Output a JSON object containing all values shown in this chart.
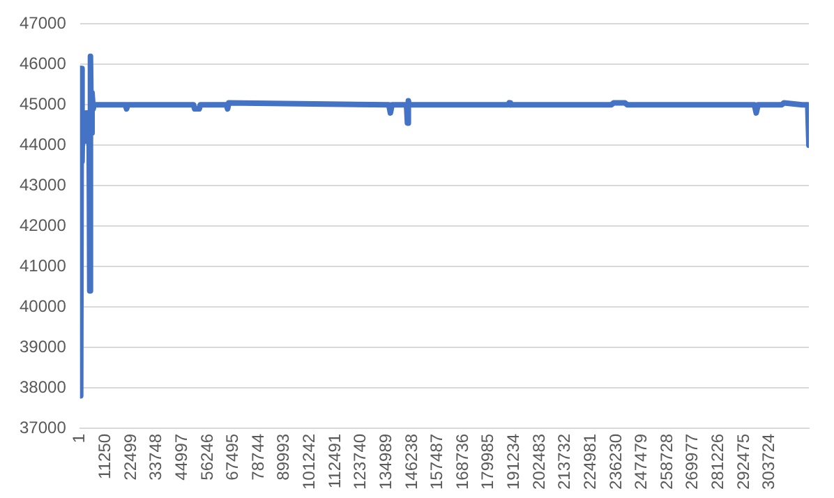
{
  "chart_data": {
    "type": "line",
    "x": [
      1,
      300,
      600,
      900,
      1200,
      1600,
      2000,
      2500,
      3000,
      3500,
      4000,
      4300,
      4600,
      5000,
      5300,
      5800,
      6200,
      20000,
      20500,
      21000,
      50000,
      50500,
      52500,
      53000,
      64500,
      65000,
      65500,
      136000,
      136700,
      137400,
      143800,
      144200,
      144600,
      145000,
      188500,
      189000,
      189500,
      234000,
      235000,
      240000,
      241000,
      297000,
      297800,
      298600,
      309000,
      310000,
      318000,
      320500,
      321000
    ],
    "values": [
      45900,
      37800,
      45900,
      43600,
      44800,
      44100,
      44700,
      44100,
      44800,
      44200,
      44700,
      40400,
      46200,
      44300,
      45300,
      44900,
      45000,
      45000,
      44900,
      45000,
      45000,
      44900,
      44900,
      45000,
      45000,
      44900,
      45050,
      45000,
      44800,
      45000,
      45000,
      44550,
      45100,
      45000,
      45000,
      45050,
      45000,
      45000,
      45050,
      45050,
      45000,
      45000,
      44800,
      45000,
      45000,
      45050,
      45000,
      45000,
      44000
    ],
    "color": "#4472c4",
    "xlim": [
      1,
      321000
    ],
    "xticks": [
      1,
      11250,
      22499,
      33748,
      44997,
      56246,
      67495,
      78744,
      89993,
      101242,
      112491,
      123740,
      134989,
      146238,
      157487,
      168736,
      179985,
      191234,
      202483,
      213732,
      224981,
      236230,
      247479,
      258728,
      269977,
      281226,
      292475,
      303724
    ],
    "ylim": [
      37000,
      47000
    ],
    "yticks": [
      37000,
      38000,
      39000,
      40000,
      41000,
      42000,
      43000,
      44000,
      45000,
      46000,
      47000
    ],
    "grid": "y",
    "legend": false,
    "marker": "none",
    "line_style": "solid"
  }
}
